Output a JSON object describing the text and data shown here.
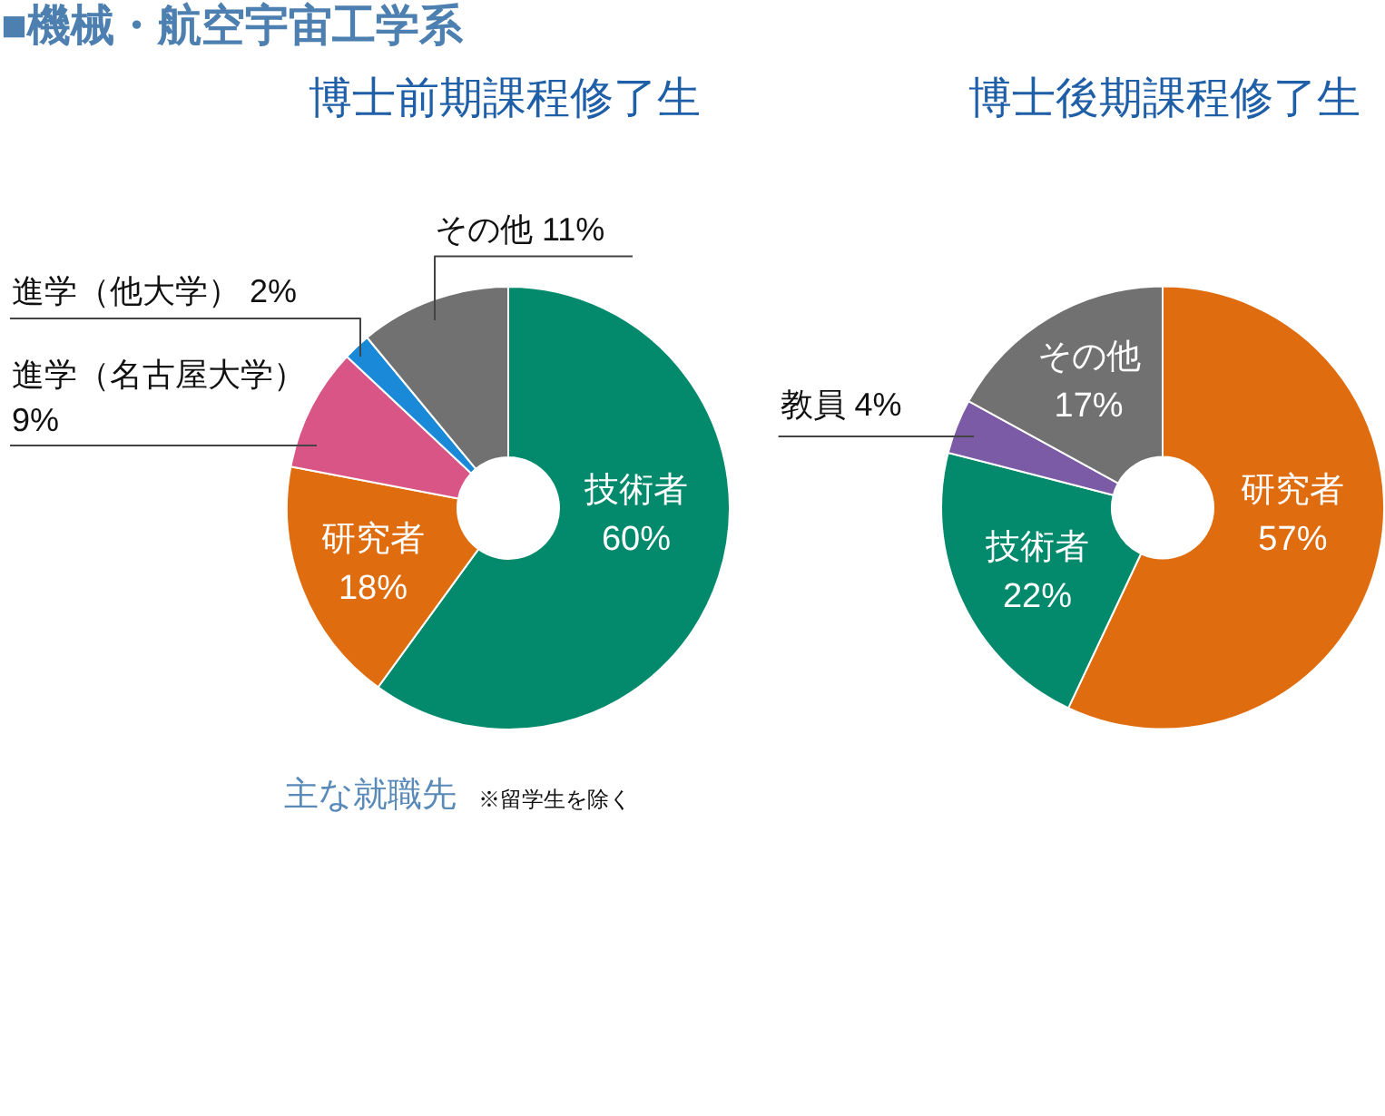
{
  "chart_data": [
    {
      "type": "other",
      "title": "■機械・航空宇宙工学系"
    },
    {
      "type": "donut",
      "title": "博士前期課程修了生",
      "categories": [
        "技術者",
        "研究者",
        "進学（名古屋大学）",
        "進学（他大学）",
        "その他"
      ],
      "values": [
        60,
        18,
        9,
        2,
        11
      ],
      "colors": [
        "#038a6c",
        "#df6c0f",
        "#d95585",
        "#1a8ad8",
        "#717171"
      ],
      "value_labels": [
        "60%",
        "18%",
        "9%",
        "2%",
        "11%"
      ]
    },
    {
      "type": "donut",
      "title": "博士後期課程修了生",
      "categories": [
        "研究者",
        "技術者",
        "教員",
        "その他"
      ],
      "values": [
        57,
        22,
        4,
        17
      ],
      "colors": [
        "#df6c0f",
        "#038a6c",
        "#7b5aa6",
        "#717171"
      ],
      "value_labels": [
        "57%",
        "22%",
        "4%",
        "17%"
      ]
    },
    {
      "type": "other",
      "title": "主な就職先",
      "subtitle": "※留学生を除く"
    }
  ]
}
